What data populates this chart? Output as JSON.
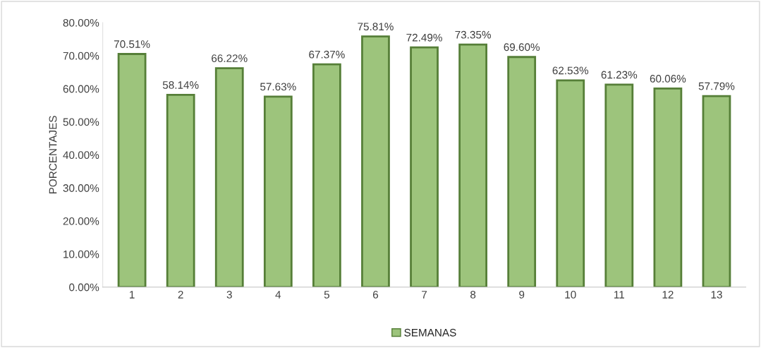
{
  "chart_data": {
    "type": "bar",
    "ylabel": "PORCENTAJES",
    "categories": [
      "1",
      "2",
      "3",
      "4",
      "5",
      "6",
      "7",
      "8",
      "9",
      "10",
      "11",
      "12",
      "13"
    ],
    "series": [
      {
        "name": "SEMANAS",
        "color": "#9dc47c",
        "values": [
          70.51,
          58.14,
          66.22,
          57.63,
          67.37,
          75.81,
          72.49,
          73.35,
          69.6,
          62.53,
          61.23,
          60.06,
          57.79
        ]
      }
    ],
    "value_labels": [
      "70.51%",
      "58.14%",
      "66.22%",
      "57.63%",
      "67.37%",
      "75.81%",
      "72.49%",
      "73.35%",
      "69.60%",
      "62.53%",
      "61.23%",
      "60.06%",
      "57.79%"
    ],
    "ylim": [
      0,
      80
    ],
    "yticks": [
      {
        "value": 0,
        "label": "0.00%"
      },
      {
        "value": 10,
        "label": "10.00%"
      },
      {
        "value": 20,
        "label": "20.00%"
      },
      {
        "value": 30,
        "label": "30.00%"
      },
      {
        "value": 40,
        "label": "40.00%"
      },
      {
        "value": 50,
        "label": "50.00%"
      },
      {
        "value": 60,
        "label": "60.00%"
      },
      {
        "value": 70,
        "label": "70.00%"
      },
      {
        "value": 80,
        "label": "80.00%"
      }
    ],
    "grid": false,
    "legend": "bottom"
  }
}
